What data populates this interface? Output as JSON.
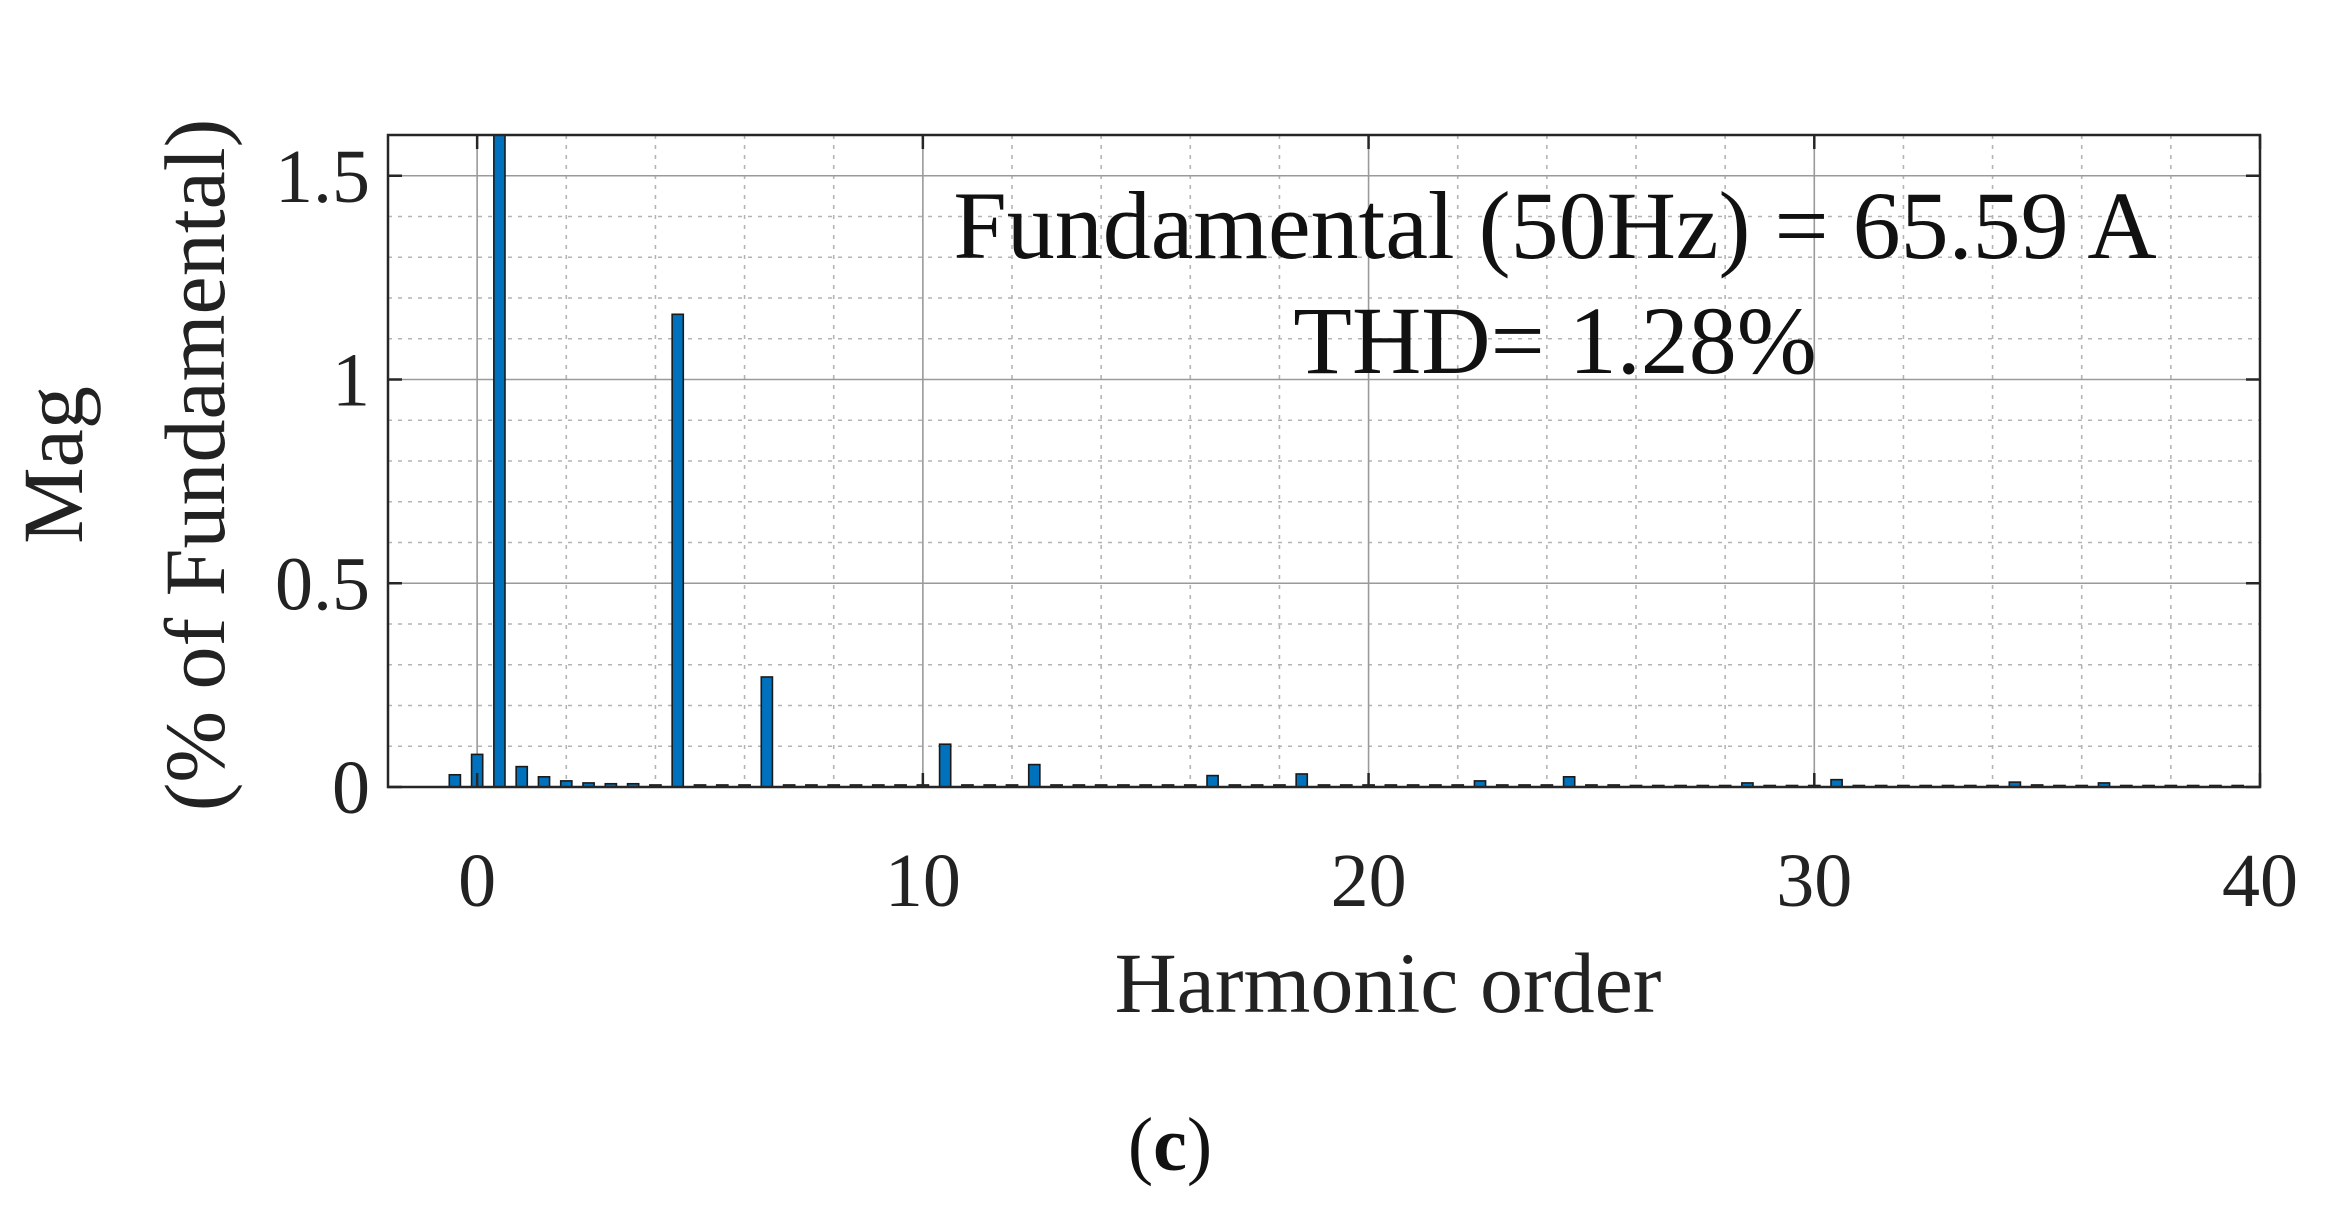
{
  "chart_data": {
    "type": "bar",
    "xlabel": "Harmonic order",
    "ylabel_line1": "Mag",
    "ylabel_line2": "(% of Fundamental)",
    "xlim": [
      -2,
      40
    ],
    "ylim": [
      0,
      1.6
    ],
    "xticks": [
      0,
      10,
      20,
      30,
      40
    ],
    "yticks": [
      0,
      0.5,
      1,
      1.5
    ],
    "xtick_labels": [
      "0",
      "10",
      "20",
      "30",
      "40"
    ],
    "ytick_labels": [
      "0",
      "0.5",
      "1",
      "1.5"
    ],
    "grid": true,
    "minor_grid": true,
    "bar_color": "#0072BD",
    "bar_edge_color": "#1a1a1a",
    "annotation_line1": "Fundamental (50Hz) = 65.59 A",
    "annotation_line2": "THD= 1.28%",
    "caption_open": "(",
    "caption_letter": "c",
    "caption_close": ")",
    "bar_width": 0.25,
    "x": [
      -0.5,
      0,
      0.5,
      1,
      1.5,
      2,
      2.5,
      3,
      3.5,
      4,
      4.5,
      5,
      5.5,
      6,
      6.5,
      7,
      7.5,
      8,
      8.5,
      9,
      9.5,
      10,
      10.5,
      11,
      11.5,
      12,
      12.5,
      13,
      13.5,
      14,
      14.5,
      15,
      15.5,
      16,
      16.5,
      17,
      17.5,
      18,
      18.5,
      19,
      19.5,
      20,
      20.5,
      21,
      21.5,
      22,
      22.5,
      23,
      23.5,
      24,
      24.5,
      25,
      25.5,
      26,
      26.5,
      27,
      27.5,
      28,
      28.5,
      29,
      29.5,
      30,
      30.5,
      31,
      31.5,
      32,
      32.5,
      33,
      33.5,
      34,
      34.5,
      35,
      35.5,
      36,
      36.5,
      37,
      37.5,
      38,
      38.5,
      39,
      39.5
    ],
    "values": [
      0.03,
      0.08,
      1.6,
      0.05,
      0.025,
      0.015,
      0.01,
      0.008,
      0.008,
      0.005,
      1.16,
      0.005,
      0.005,
      0.005,
      0.27,
      0.005,
      0.005,
      0.005,
      0.005,
      0.005,
      0.005,
      0.005,
      0.105,
      0.005,
      0.005,
      0.005,
      0.055,
      0.005,
      0.005,
      0.005,
      0.005,
      0.005,
      0.005,
      0.005,
      0.028,
      0.005,
      0.005,
      0.005,
      0.032,
      0.005,
      0.005,
      0.005,
      0.005,
      0.005,
      0.005,
      0.005,
      0.015,
      0.005,
      0.005,
      0.005,
      0.025,
      0.005,
      0.005,
      0.003,
      0.003,
      0.003,
      0.003,
      0.003,
      0.01,
      0.003,
      0.003,
      0.003,
      0.018,
      0.003,
      0.003,
      0.003,
      0.003,
      0.003,
      0.003,
      0.003,
      0.012,
      0.005,
      0.003,
      0.003,
      0.01,
      0.003,
      0.003,
      0.003,
      0.003,
      0.003,
      0.003
    ]
  }
}
